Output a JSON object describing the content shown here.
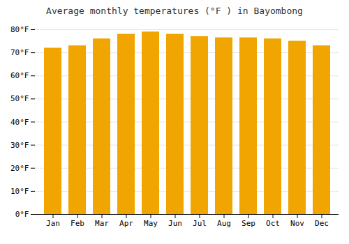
{
  "chart_data": {
    "type": "bar",
    "title": "Average monthly temperatures (°F ) in Bayombong",
    "categories": [
      "Jan",
      "Feb",
      "Mar",
      "Apr",
      "May",
      "Jun",
      "Jul",
      "Aug",
      "Sep",
      "Oct",
      "Nov",
      "Dec"
    ],
    "values": [
      72,
      73,
      76,
      78,
      79,
      78,
      77,
      76.5,
      76.5,
      76,
      75,
      73
    ],
    "color": "#F0A500",
    "ylim": [
      0,
      80
    ],
    "yticks": [
      {
        "value": 0,
        "label": "0°F"
      },
      {
        "value": 10,
        "label": "10°F"
      },
      {
        "value": 20,
        "label": "20°F"
      },
      {
        "value": 30,
        "label": "30°F"
      },
      {
        "value": 40,
        "label": "40°F"
      },
      {
        "value": 50,
        "label": "50°F"
      },
      {
        "value": 60,
        "label": "60°F"
      },
      {
        "value": 70,
        "label": "70°F"
      },
      {
        "value": 80,
        "label": "80°F"
      }
    ],
    "grid": true
  }
}
